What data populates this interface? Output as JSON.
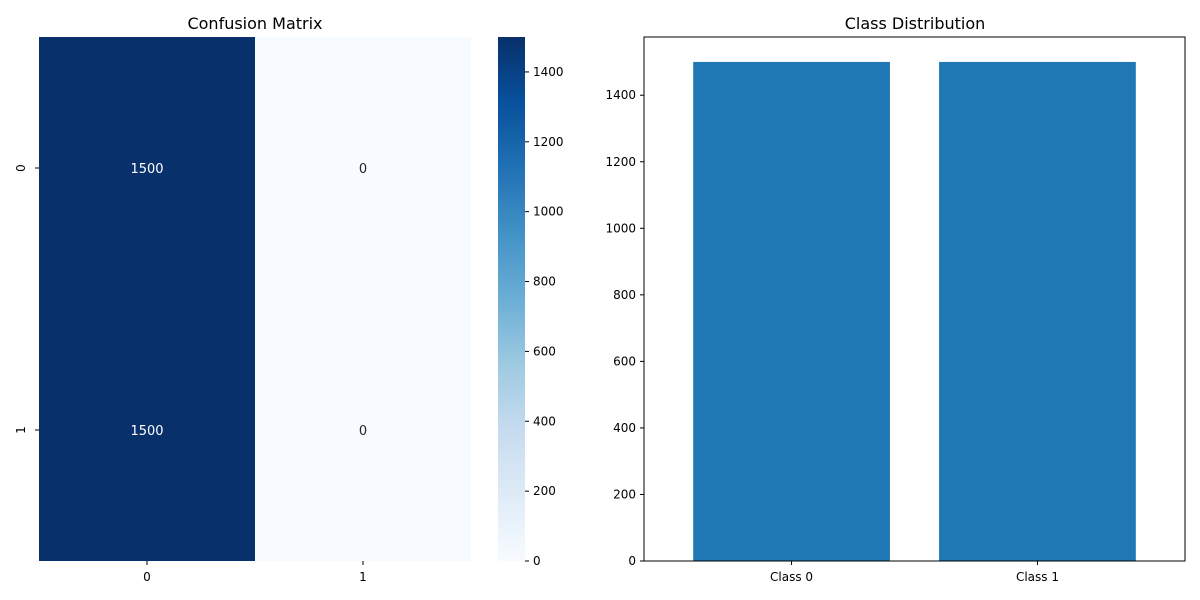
{
  "chart_data": [
    {
      "type": "heatmap",
      "title": "Confusion Matrix",
      "xlabel": "",
      "ylabel": "",
      "x_categories": [
        "0",
        "1"
      ],
      "y_categories": [
        "0",
        "1"
      ],
      "values": [
        [
          1500,
          0
        ],
        [
          1500,
          0
        ]
      ],
      "colormap": "Blues",
      "colorbar": {
        "min": 0,
        "max": 1500,
        "ticks": [
          "0",
          "200",
          "400",
          "600",
          "800",
          "1000",
          "1200",
          "1400"
        ]
      },
      "annotations": true
    },
    {
      "type": "bar",
      "title": "Class Distribution",
      "xlabel": "",
      "ylabel": "",
      "categories": [
        "Class 0",
        "Class 1"
      ],
      "values": [
        1500,
        1500
      ],
      "ylim": [
        0,
        1575
      ],
      "yticks": [
        "0",
        "200",
        "400",
        "600",
        "800",
        "1000",
        "1200",
        "1400"
      ],
      "bar_color": "#1f77b4",
      "grid": false
    }
  ]
}
